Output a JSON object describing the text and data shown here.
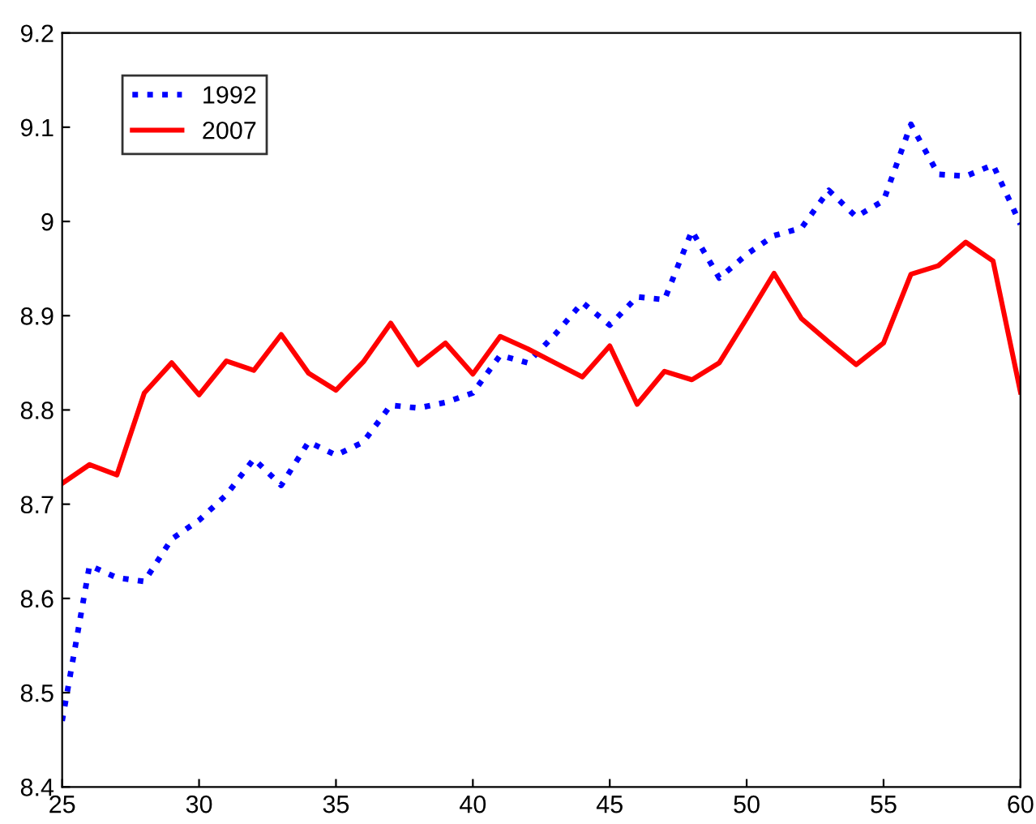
{
  "chart_data": {
    "type": "line",
    "x": [
      25,
      26,
      27,
      28,
      29,
      30,
      31,
      32,
      33,
      34,
      35,
      36,
      37,
      38,
      39,
      40,
      41,
      42,
      43,
      44,
      45,
      46,
      47,
      48,
      49,
      50,
      51,
      52,
      53,
      54,
      55,
      56,
      57,
      58,
      59,
      60
    ],
    "series": [
      {
        "name": "1992",
        "color": "#0000ff",
        "line_style": "dotted",
        "values": [
          8.47,
          8.635,
          8.622,
          8.618,
          8.663,
          8.683,
          8.71,
          8.748,
          8.72,
          8.766,
          8.752,
          8.766,
          8.805,
          8.802,
          8.808,
          8.818,
          8.858,
          8.85,
          8.88,
          8.914,
          8.89,
          8.92,
          8.917,
          8.99,
          8.94,
          8.965,
          8.985,
          8.993,
          9.033,
          9.005,
          9.022,
          9.103,
          9.05,
          9.048,
          9.06,
          8.997
        ]
      },
      {
        "name": "2007",
        "color": "#ff0000",
        "line_style": "solid",
        "values": [
          8.722,
          8.742,
          8.731,
          8.818,
          8.85,
          8.816,
          8.852,
          8.842,
          8.88,
          8.839,
          8.821,
          8.851,
          8.892,
          8.848,
          8.871,
          8.838,
          8.878,
          8.865,
          8.85,
          8.835,
          8.868,
          8.806,
          8.841,
          8.832,
          8.85,
          8.897,
          8.945,
          8.897,
          8.872,
          8.848,
          8.871,
          8.944,
          8.953,
          8.978,
          8.958,
          8.819
        ]
      }
    ],
    "xlim": [
      25,
      60
    ],
    "xticks": [
      25,
      30,
      35,
      40,
      45,
      50,
      55,
      60
    ],
    "ylim": [
      8.4,
      9.2
    ],
    "yticks": [
      8.4,
      8.5,
      8.6,
      8.7,
      8.8,
      8.9,
      9,
      9.1,
      9.2
    ],
    "legend": "top left",
    "grid": false
  }
}
